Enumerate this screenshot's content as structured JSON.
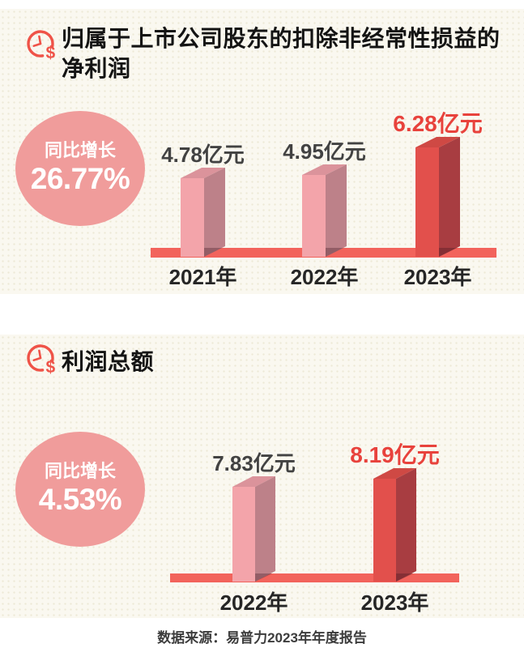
{
  "panels": [
    {
      "title_line1": "归属于上市公司股东的扣除非经常性损益的",
      "title_line2": "净利润",
      "growth_label": "同比增长",
      "growth_value": "26.77%"
    },
    {
      "title_line1": "利润总额",
      "title_line2": "",
      "growth_label": "同比增长",
      "growth_value": "4.53%"
    }
  ],
  "footer": {
    "source": "数据来源：易普力2023年年度报告"
  },
  "colors": {
    "icon_red": "#ef5348",
    "panel_bg": "#faf8f0",
    "title_text": "#141414",
    "circle_pink": "#f09c9b",
    "baseline_red": "#f2635c",
    "bar_pink_front": "#f3a4aa",
    "bar_pink_top": "#db939b",
    "bar_pink_side": "#bd8189",
    "bar_red_front": "#e2504c",
    "bar_red_top": "#cf4944",
    "bar_red_side": "#a83d41",
    "value_label_text": "#424242",
    "value_label_highlight": "#e8423c",
    "year_label_text": "#262626",
    "footer_text": "#3c3c3c"
  },
  "chart_data": [
    {
      "type": "bar",
      "style": "3d-column",
      "title": "归属于上市公司股东的扣除非经常性损益的净利润",
      "categories": [
        "2021年",
        "2022年",
        "2023年"
      ],
      "values": [
        4.78,
        4.95,
        6.28
      ],
      "value_labels": [
        "4.78亿元",
        "4.95亿元",
        "6.28亿元"
      ],
      "unit": "亿元",
      "highlight_index": 2,
      "yoy_growth": "26.77%",
      "ylim": [
        0,
        7
      ],
      "grid": false,
      "legend": false
    },
    {
      "type": "bar",
      "style": "3d-column",
      "title": "利润总额",
      "categories": [
        "2022年",
        "2023年"
      ],
      "values": [
        7.83,
        8.19
      ],
      "value_labels": [
        "7.83亿元",
        "8.19亿元"
      ],
      "unit": "亿元",
      "highlight_index": 1,
      "yoy_growth": "4.53%",
      "ylim": [
        0,
        9
      ],
      "grid": false,
      "legend": false
    }
  ]
}
